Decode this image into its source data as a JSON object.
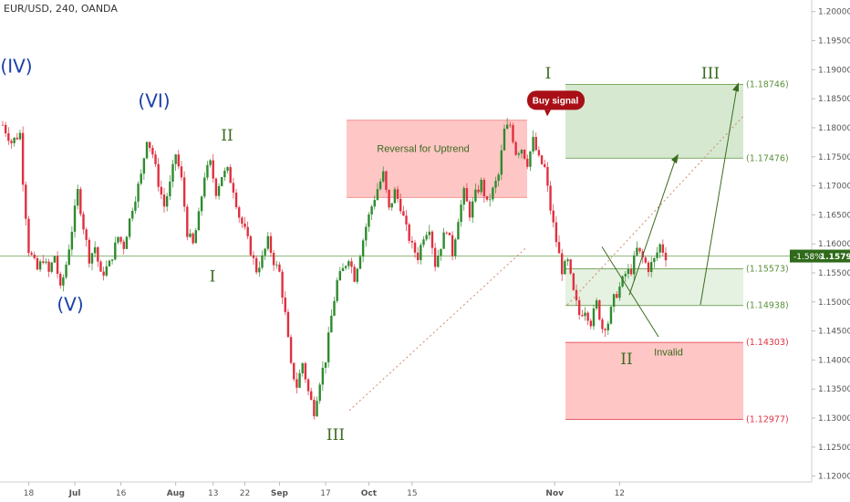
{
  "header": {
    "symbol_line": "EUR/USD, 240, OANDA"
  },
  "colors": {
    "up": "#2e8b2e",
    "down": "#e03040",
    "wave_blue": "#1a3fa8",
    "wave_green": "#3a6b1e",
    "green_zone": "#cfe5c8",
    "red_zone": "#ffbcbc",
    "price_badge": "#2f6a1a"
  },
  "chart_data": {
    "type": "candlestick",
    "symbol": "EUR/USD",
    "timeframe": "240",
    "source": "OANDA",
    "ylim": [
      1.119,
      1.202
    ],
    "y_ticks": [
      1.12,
      1.125,
      1.13,
      1.135,
      1.14,
      1.145,
      1.15,
      1.155,
      1.16,
      1.165,
      1.17,
      1.175,
      1.18,
      1.185,
      1.19,
      1.195,
      1.2
    ],
    "y_tick_labels": [
      "1.12000",
      "1.12500",
      "1.13000",
      "1.13500",
      "1.14000",
      "1.14500",
      "1.15000",
      "1.15500",
      "1.16000",
      "1.16500",
      "1.17000",
      "1.17500",
      "1.18000",
      "1.18500",
      "1.19000",
      "1.19500",
      "1.20000"
    ],
    "x_labels": [
      "18",
      "Jul",
      "16",
      "Aug",
      "13",
      "22",
      "Sep",
      "17",
      "Oct",
      "15",
      "Nov",
      "12"
    ],
    "x_label_bold": [
      false,
      true,
      false,
      true,
      false,
      false,
      true,
      false,
      true,
      false,
      true,
      false
    ],
    "price_path": [
      [
        0,
        1.1805
      ],
      [
        3,
        1.1775
      ],
      [
        6,
        1.179
      ],
      [
        7,
        1.171
      ],
      [
        9,
        1.159
      ],
      [
        12,
        1.1555
      ],
      [
        14,
        1.1575
      ],
      [
        16,
        1.155
      ],
      [
        18,
        1.158
      ],
      [
        20,
        1.152
      ],
      [
        22,
        1.1565
      ],
      [
        24,
        1.1625
      ],
      [
        26,
        1.169
      ],
      [
        28,
        1.163
      ],
      [
        30,
        1.1575
      ],
      [
        32,
        1.1595
      ],
      [
        34,
        1.1545
      ],
      [
        37,
        1.1565
      ],
      [
        40,
        1.1612
      ],
      [
        42,
        1.1596
      ],
      [
        45,
        1.1664
      ],
      [
        48,
        1.1717
      ],
      [
        50,
        1.1783
      ],
      [
        52,
        1.1755
      ],
      [
        54,
        1.1705
      ],
      [
        56,
        1.1665
      ],
      [
        58,
        1.1702
      ],
      [
        60,
        1.1755
      ],
      [
        62,
        1.171
      ],
      [
        64,
        1.162
      ],
      [
        66,
        1.1598
      ],
      [
        68,
        1.1648
      ],
      [
        70,
        1.1719
      ],
      [
        72,
        1.1738
      ],
      [
        74,
        1.169
      ],
      [
        76,
        1.1718
      ],
      [
        78,
        1.1725
      ],
      [
        80,
        1.1695
      ],
      [
        82,
        1.1648
      ],
      [
        84,
        1.1622
      ],
      [
        86,
        1.1588
      ],
      [
        88,
        1.1555
      ],
      [
        90,
        1.1575
      ],
      [
        92,
        1.1605
      ],
      [
        94,
        1.157
      ],
      [
        96,
        1.155
      ],
      [
        98,
        1.1478
      ],
      [
        100,
        1.1388
      ],
      [
        102,
        1.1355
      ],
      [
        104,
        1.1395
      ],
      [
        106,
        1.1345
      ],
      [
        108,
        1.1312
      ],
      [
        110,
        1.1365
      ],
      [
        112,
        1.1402
      ],
      [
        114,
        1.1475
      ],
      [
        116,
        1.1535
      ],
      [
        118,
        1.1555
      ],
      [
        120,
        1.1578
      ],
      [
        122,
        1.1542
      ],
      [
        124,
        1.1585
      ],
      [
        126,
        1.163
      ],
      [
        128,
        1.1665
      ],
      [
        130,
        1.1695
      ],
      [
        132,
        1.172
      ],
      [
        134,
        1.1658
      ],
      [
        136,
        1.169
      ],
      [
        138,
        1.1665
      ],
      [
        140,
        1.1625
      ],
      [
        142,
        1.1595
      ],
      [
        144,
        1.1578
      ],
      [
        146,
        1.1615
      ],
      [
        148,
        1.163
      ],
      [
        150,
        1.1565
      ],
      [
        152,
        1.1598
      ],
      [
        154,
        1.1628
      ],
      [
        156,
        1.1584
      ],
      [
        158,
        1.1645
      ],
      [
        160,
        1.1688
      ],
      [
        162,
        1.1652
      ],
      [
        164,
        1.1685
      ],
      [
        166,
        1.1705
      ],
      [
        168,
        1.1668
      ],
      [
        170,
        1.1692
      ],
      [
        172,
        1.1718
      ],
      [
        174,
        1.1795
      ],
      [
        176,
        1.1805
      ],
      [
        178,
        1.1758
      ],
      [
        180,
        1.1765
      ],
      [
        182,
        1.174
      ],
      [
        184,
        1.1778
      ],
      [
        186,
        1.1745
      ],
      [
        188,
        1.173
      ],
      [
        190,
        1.166
      ],
      [
        192,
        1.1605
      ],
      [
        194,
        1.1555
      ],
      [
        196,
        1.1568
      ],
      [
        198,
        1.1515
      ],
      [
        200,
        1.1478
      ],
      [
        202,
        1.1488
      ],
      [
        204,
        1.1465
      ],
      [
        206,
        1.1498
      ],
      [
        208,
        1.1455
      ],
      [
        210,
        1.1465
      ],
      [
        212,
        1.1505
      ],
      [
        214,
        1.1525
      ],
      [
        216,
        1.1548
      ],
      [
        218,
        1.1555
      ],
      [
        220,
        1.159
      ],
      [
        222,
        1.1575
      ],
      [
        224,
        1.1558
      ],
      [
        226,
        1.1572
      ],
      [
        228,
        1.1598
      ],
      [
        230,
        1.1579
      ]
    ],
    "candle_count": 231,
    "time_axis": {
      "x0": 0,
      "x1": 230,
      "label_positions": [
        9,
        25,
        41,
        60,
        73,
        84,
        96,
        112,
        127,
        142,
        163,
        176
      ]
    },
    "current_price": {
      "value": 1.1579,
      "label": "1.15790",
      "change_label": "-1.58%"
    },
    "horizontal_line": 1.1579,
    "zones": [
      {
        "id": "reversal",
        "label": "Reversal for Uptrend",
        "y_top": 1.1813,
        "y_bottom": 1.168,
        "x_from": "Aug 13 area",
        "x_to": "Sep 17 area",
        "color": "#ffbcbc"
      },
      {
        "id": "target",
        "y_top": 1.18746,
        "y_bottom": 1.17476,
        "color": "#cfe5c8"
      },
      {
        "id": "entry",
        "y_top": 1.15573,
        "y_bottom": 1.14938,
        "color": "#e0eedc"
      },
      {
        "id": "invalid",
        "y_top": 1.14303,
        "y_bottom": 1.12977,
        "color": "#ffbcbc"
      }
    ],
    "level_labels": [
      "(1.18746)",
      "(1.17476)",
      "(1.15573)",
      "(1.14938)",
      "(1.14303)",
      "(1.12977)"
    ],
    "annotations": {
      "buy_signal": "Buy signal",
      "invalid": "Invalid",
      "reversal": "Reversal for Uptrend",
      "waves_blue": [
        "(IV)",
        "(V)",
        "(VI)"
      ],
      "waves_green": [
        "II",
        "I",
        "III",
        "I",
        "II",
        "III"
      ]
    }
  }
}
